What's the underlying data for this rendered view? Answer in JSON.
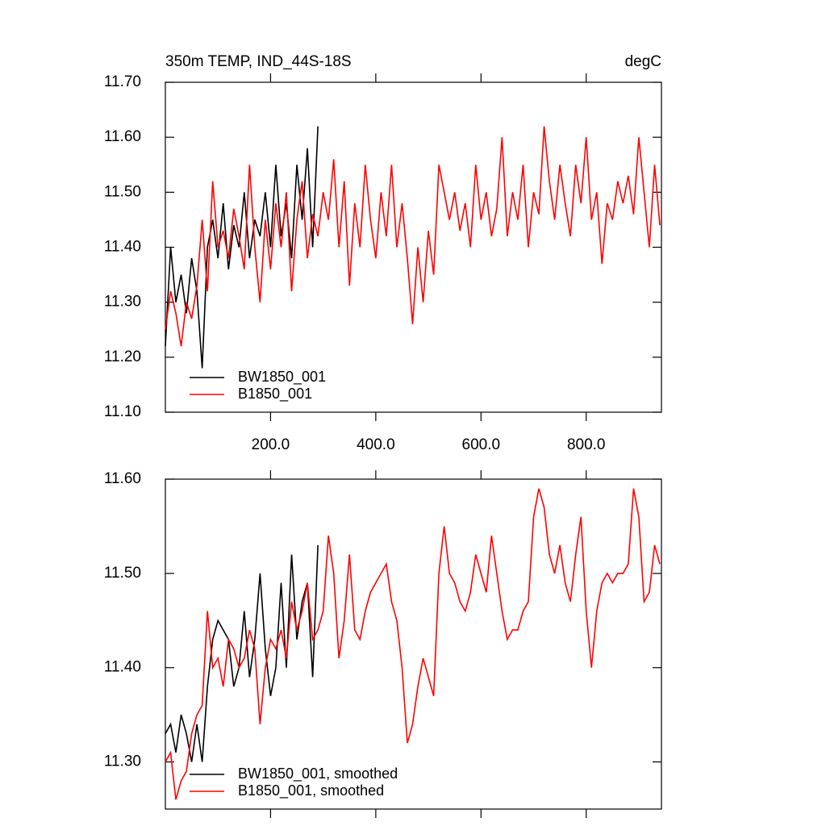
{
  "chart_data": [
    {
      "type": "line",
      "title": "350m TEMP, IND_44S-18S",
      "units": "degC",
      "xlim": [
        0,
        943
      ],
      "ylim": [
        11.1,
        11.7
      ],
      "xticks": [
        {
          "value": 200,
          "label": "200.0"
        },
        {
          "value": 400,
          "label": "400.0"
        },
        {
          "value": 600,
          "label": "600.0"
        },
        {
          "value": 800,
          "label": "800.0"
        }
      ],
      "yticks": [
        {
          "value": 11.1,
          "label": "11.10"
        },
        {
          "value": 11.2,
          "label": "11.20"
        },
        {
          "value": 11.3,
          "label": "11.30"
        },
        {
          "value": 11.4,
          "label": "11.40"
        },
        {
          "value": 11.5,
          "label": "11.50"
        },
        {
          "value": 11.6,
          "label": "11.60"
        },
        {
          "value": 11.7,
          "label": "11.70"
        }
      ],
      "legend": "lower left",
      "series": [
        {
          "name": "BW1850_001",
          "color": "#000000",
          "x": [
            0,
            10,
            20,
            30,
            40,
            50,
            60,
            70,
            80,
            90,
            100,
            110,
            120,
            130,
            140,
            150,
            160,
            170,
            180,
            190,
            200,
            210,
            220,
            230,
            240,
            250,
            260,
            270,
            280,
            290
          ],
          "values": [
            11.22,
            11.4,
            11.3,
            11.35,
            11.28,
            11.38,
            11.32,
            11.18,
            11.4,
            11.45,
            11.38,
            11.48,
            11.36,
            11.44,
            11.4,
            11.5,
            11.38,
            11.45,
            11.42,
            11.5,
            11.4,
            11.55,
            11.42,
            11.48,
            11.38,
            11.55,
            11.45,
            11.58,
            11.4,
            11.62
          ]
        },
        {
          "name": "B1850_001",
          "color": "#ff0000",
          "x": [
            0,
            10,
            20,
            30,
            40,
            50,
            60,
            70,
            80,
            90,
            100,
            110,
            120,
            130,
            140,
            150,
            160,
            170,
            180,
            190,
            200,
            210,
            220,
            230,
            240,
            250,
            260,
            270,
            280,
            290,
            300,
            310,
            320,
            330,
            340,
            350,
            360,
            370,
            380,
            390,
            400,
            410,
            420,
            430,
            440,
            450,
            460,
            470,
            480,
            490,
            500,
            510,
            520,
            530,
            540,
            550,
            560,
            570,
            580,
            590,
            600,
            610,
            620,
            630,
            640,
            650,
            660,
            670,
            680,
            690,
            700,
            710,
            720,
            730,
            740,
            750,
            760,
            770,
            780,
            790,
            800,
            810,
            820,
            830,
            840,
            850,
            860,
            870,
            880,
            890,
            900,
            910,
            920,
            930,
            940
          ],
          "values": [
            11.25,
            11.32,
            11.28,
            11.22,
            11.3,
            11.27,
            11.33,
            11.45,
            11.32,
            11.52,
            11.4,
            11.43,
            11.38,
            11.47,
            11.42,
            11.36,
            11.55,
            11.4,
            11.3,
            11.45,
            11.36,
            11.48,
            11.4,
            11.5,
            11.32,
            11.45,
            11.52,
            11.38,
            11.46,
            11.42,
            11.5,
            11.45,
            11.56,
            11.4,
            11.52,
            11.33,
            11.48,
            11.4,
            11.55,
            11.45,
            11.38,
            11.5,
            11.42,
            11.55,
            11.4,
            11.48,
            11.38,
            11.26,
            11.4,
            11.3,
            11.43,
            11.35,
            11.55,
            11.5,
            11.45,
            11.5,
            11.43,
            11.48,
            11.4,
            11.55,
            11.45,
            11.5,
            11.42,
            11.47,
            11.6,
            11.42,
            11.5,
            11.45,
            11.55,
            11.4,
            11.5,
            11.46,
            11.62,
            11.52,
            11.45,
            11.55,
            11.48,
            11.42,
            11.55,
            11.48,
            11.6,
            11.45,
            11.5,
            11.37,
            11.48,
            11.45,
            11.52,
            11.48,
            11.53,
            11.46,
            11.6,
            11.5,
            11.4,
            11.55,
            11.44
          ]
        }
      ]
    },
    {
      "type": "line",
      "xlim": [
        0,
        943
      ],
      "ylim": [
        11.25,
        11.6
      ],
      "yticks": [
        {
          "value": 11.3,
          "label": "11.30"
        },
        {
          "value": 11.4,
          "label": "11.40"
        },
        {
          "value": 11.5,
          "label": "11.50"
        },
        {
          "value": 11.6,
          "label": "11.60"
        }
      ],
      "legend": "lower left",
      "series": [
        {
          "name": "BW1850_001, smoothed",
          "color": "#000000",
          "x": [
            0,
            10,
            20,
            30,
            40,
            50,
            60,
            70,
            80,
            90,
            100,
            110,
            120,
            130,
            140,
            150,
            160,
            170,
            180,
            190,
            200,
            210,
            220,
            230,
            240,
            250,
            260,
            270,
            280,
            290
          ],
          "values": [
            11.33,
            11.34,
            11.31,
            11.35,
            11.33,
            11.3,
            11.34,
            11.3,
            11.38,
            11.43,
            11.45,
            11.44,
            11.43,
            11.38,
            11.4,
            11.46,
            11.39,
            11.43,
            11.5,
            11.42,
            11.37,
            11.4,
            11.49,
            11.4,
            11.52,
            11.43,
            11.47,
            11.49,
            11.39,
            11.53
          ]
        },
        {
          "name": "B1850_001, smoothed",
          "color": "#ff0000",
          "x": [
            0,
            10,
            20,
            30,
            40,
            50,
            60,
            70,
            80,
            90,
            100,
            110,
            120,
            130,
            140,
            150,
            160,
            170,
            180,
            190,
            200,
            210,
            220,
            230,
            240,
            250,
            260,
            270,
            280,
            290,
            300,
            310,
            320,
            330,
            340,
            350,
            360,
            370,
            380,
            390,
            400,
            410,
            420,
            430,
            440,
            450,
            460,
            470,
            480,
            490,
            500,
            510,
            520,
            530,
            540,
            550,
            560,
            570,
            580,
            590,
            600,
            610,
            620,
            630,
            640,
            650,
            660,
            670,
            680,
            690,
            700,
            710,
            720,
            730,
            740,
            750,
            760,
            770,
            780,
            790,
            800,
            810,
            820,
            830,
            840,
            850,
            860,
            870,
            880,
            890,
            900,
            910,
            920,
            930,
            940
          ],
          "values": [
            11.3,
            11.31,
            11.26,
            11.28,
            11.29,
            11.33,
            11.35,
            11.36,
            11.46,
            11.4,
            11.41,
            11.38,
            11.43,
            11.42,
            11.4,
            11.41,
            11.44,
            11.42,
            11.34,
            11.4,
            11.43,
            11.42,
            11.44,
            11.41,
            11.47,
            11.44,
            11.46,
            11.49,
            11.43,
            11.44,
            11.46,
            11.54,
            11.5,
            11.41,
            11.45,
            11.52,
            11.44,
            11.43,
            11.46,
            11.48,
            11.49,
            11.5,
            11.51,
            11.47,
            11.45,
            11.4,
            11.32,
            11.34,
            11.38,
            11.41,
            11.39,
            11.37,
            11.5,
            11.55,
            11.5,
            11.49,
            11.47,
            11.46,
            11.48,
            11.52,
            11.5,
            11.48,
            11.54,
            11.5,
            11.46,
            11.43,
            11.44,
            11.44,
            11.46,
            11.47,
            11.56,
            11.59,
            11.57,
            11.52,
            11.5,
            11.53,
            11.49,
            11.47,
            11.52,
            11.56,
            11.46,
            11.4,
            11.46,
            11.49,
            11.5,
            11.49,
            11.5,
            11.5,
            11.51,
            11.59,
            11.56,
            11.47,
            11.48,
            11.53,
            11.51
          ]
        }
      ]
    }
  ]
}
